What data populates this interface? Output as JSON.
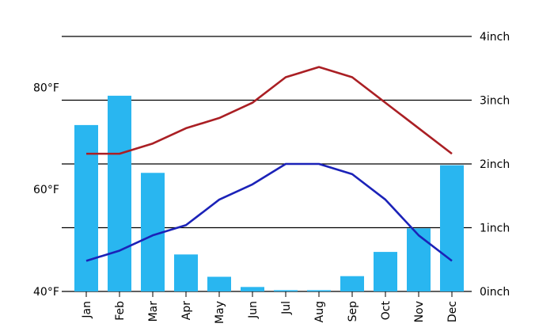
{
  "chart_data": {
    "type": "bar",
    "categories": [
      "Jan",
      "Feb",
      "Mar",
      "Apr",
      "May",
      "Jun",
      "Jul",
      "Aug",
      "Sep",
      "Oct",
      "Nov",
      "Dec"
    ],
    "left_axis": {
      "ylim": [
        40,
        90
      ],
      "ticks": [
        40,
        60,
        80
      ],
      "tick_labels": [
        "40°F",
        "60°F",
        "80°F"
      ]
    },
    "right_axis": {
      "ylim": [
        0,
        4
      ],
      "ticks": [
        0,
        1,
        2,
        3,
        4
      ],
      "tick_labels": [
        "0inch",
        "1inch",
        "2inch",
        "3inch",
        "4inch"
      ]
    },
    "grid": true,
    "series": [
      {
        "type": "bar",
        "axis": "right",
        "color": "#29b6f0",
        "values": [
          2.61,
          3.07,
          1.86,
          0.58,
          0.23,
          0.07,
          0.02,
          0.02,
          0.24,
          0.62,
          0.99,
          1.98
        ]
      },
      {
        "type": "line",
        "axis": "left",
        "color": "#aa1f24",
        "values": [
          67,
          67,
          69,
          72,
          74,
          77,
          82,
          84,
          82,
          77,
          72,
          67
        ]
      },
      {
        "type": "line",
        "axis": "left",
        "color": "#1b22b8",
        "values": [
          46,
          48,
          51,
          53,
          58,
          61,
          65,
          65,
          63,
          58,
          51,
          46
        ]
      }
    ]
  }
}
